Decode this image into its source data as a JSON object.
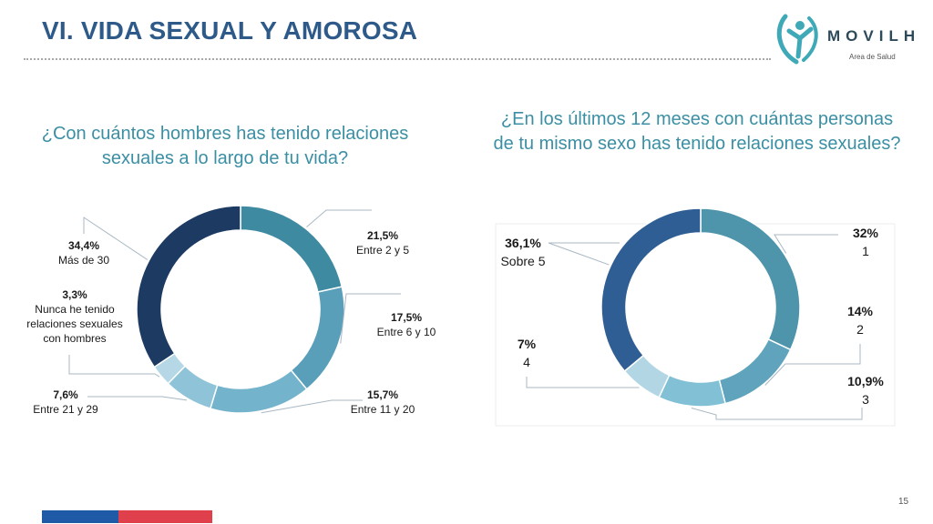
{
  "header": {
    "title": "VI. VIDA SEXUAL Y AMOROSA",
    "logo_word": "MOVILH",
    "logo_sub": "Area de Salud"
  },
  "page_number": "15",
  "colors": {
    "title": "#2e5a8a",
    "question": "#3b8fa4",
    "footer_blue": "#1f5aa6",
    "footer_red": "#e0404b"
  },
  "chart_data": [
    {
      "type": "pie",
      "donut": true,
      "title": "¿Con cuántos hombres has tenido relaciones sexuales a lo largo de tu vida?",
      "slices": [
        {
          "value_label": "21,5%",
          "category": "Entre 2 y 5",
          "value": 21.5,
          "color": "#3e8aa0"
        },
        {
          "value_label": "17,5%",
          "category": "Entre 6 y 10",
          "value": 17.5,
          "color": "#5a9fba"
        },
        {
          "value_label": "15,7%",
          "category": "Entre 11 y 20",
          "value": 15.7,
          "color": "#74b3cc"
        },
        {
          "value_label": "7,6%",
          "category": "Entre 21 y 29",
          "value": 7.6,
          "color": "#8fc3d8"
        },
        {
          "value_label": "3,3%",
          "category": "Nunca he tenido relaciones sexuales con hombres",
          "category_lines": [
            "Nunca he tenido",
            "relaciones sexuales",
            "con hombres"
          ],
          "value": 3.3,
          "color": "#b6d8e6"
        },
        {
          "value_label": "34,4%",
          "category": "Más de 30",
          "value": 34.4,
          "color": "#1c3a62"
        }
      ]
    },
    {
      "type": "pie",
      "donut": true,
      "title": "¿En los últimos 12 meses con cuántas personas de tu mismo sexo has tenido relaciones sexuales?",
      "slices": [
        {
          "value_label": "32%",
          "category": "1",
          "value": 32,
          "color": "#4e94ab"
        },
        {
          "value_label": "14%",
          "category": "2",
          "value": 14,
          "color": "#5fa4bc"
        },
        {
          "value_label": "10,9%",
          "category": "3",
          "value": 10.9,
          "color": "#82c0d6"
        },
        {
          "value_label": "7%",
          "category": "4",
          "value": 7,
          "color": "#b3d6e5"
        },
        {
          "value_label": "36,1%",
          "category": "Sobre 5",
          "value": 36.1,
          "color": "#2f5e94"
        }
      ]
    }
  ]
}
